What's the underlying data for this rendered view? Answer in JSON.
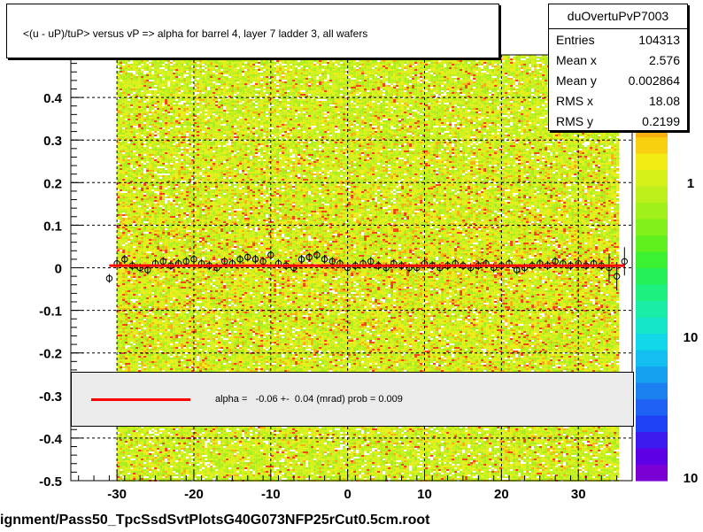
{
  "chart_data": {
    "type": "heatmap",
    "title": "<(u - uP)/tuP> versus   vP => alpha for barrel 4, layer 7 ladder 3, all wafers",
    "xlim": [
      -36,
      37
    ],
    "ylim": [
      -0.5,
      0.5
    ],
    "x_ticks": [
      -30,
      -20,
      -10,
      0,
      10,
      20,
      30
    ],
    "y_ticks": [
      -0.5,
      -0.4,
      -0.3,
      -0.2,
      -0.1,
      0,
      0.1,
      0.2,
      0.3,
      0.4
    ],
    "y_tick_labels": [
      "-0.5",
      "-0.4",
      "-0.3",
      "-0.2",
      "-0.1",
      "0",
      "0.1",
      "0.2",
      "0.3",
      "0.4"
    ],
    "grid": true,
    "populated_x_range": [
      -30,
      35
    ],
    "colorbar": {
      "scale": "log",
      "tick_labels": [
        "1",
        "10",
        "10"
      ],
      "colors": [
        "#7a00d6",
        "#5e00e6",
        "#3d1bf0",
        "#2040f5",
        "#1f60f5",
        "#1a80f0",
        "#17a0f0",
        "#13bff0",
        "#10d8e8",
        "#16e6c8",
        "#19eda6",
        "#1ef080",
        "#24f059",
        "#3cf032",
        "#60f01e",
        "#82f01a",
        "#a0f01a",
        "#bdf01a",
        "#d6f01a",
        "#f0ec14",
        "#f8d010",
        "#f8b010",
        "#f89010",
        "#f87010",
        "#f84010",
        "#f01010"
      ]
    },
    "profile": {
      "x": [
        -31,
        -30,
        -29,
        -28,
        -27,
        -26,
        -25,
        -24,
        -23,
        -22,
        -21,
        -20,
        -19,
        -18,
        -17,
        -16,
        -15,
        -14,
        -13,
        -12,
        -11,
        -10,
        -9,
        -8,
        -7,
        -6,
        -5,
        -4,
        -3,
        -2,
        -1,
        0,
        1,
        2,
        3,
        4,
        5,
        6,
        7,
        8,
        9,
        10,
        11,
        12,
        13,
        14,
        15,
        16,
        17,
        18,
        19,
        20,
        21,
        22,
        23,
        24,
        25,
        26,
        27,
        28,
        29,
        30,
        31,
        32,
        33,
        34,
        35,
        36
      ],
      "y": [
        -0.025,
        0.01,
        0.02,
        0.005,
        0.0,
        -0.005,
        0.01,
        0.015,
        0.005,
        0.01,
        0.015,
        0.02,
        0.01,
        0.005,
        0.0,
        0.015,
        0.01,
        0.02,
        0.025,
        0.02,
        0.015,
        0.03,
        0.01,
        0.005,
        0.0,
        0.02,
        0.025,
        0.03,
        0.02,
        0.015,
        0.01,
        0.0,
        0.005,
        0.01,
        0.015,
        0.005,
        0.0,
        0.01,
        0.005,
        0.0,
        0.0,
        0.01,
        0.005,
        0.0,
        0.005,
        0.01,
        0.005,
        0.0,
        0.005,
        0.01,
        0.0,
        0.005,
        0.01,
        -0.005,
        0.0,
        0.005,
        0.01,
        0.005,
        0.015,
        0.01,
        0.005,
        0.01,
        0.005,
        0.01,
        0.005,
        0.0,
        -0.02,
        0.015
      ]
    },
    "fit": {
      "type": "line",
      "y": 0.005
    }
  },
  "stats": {
    "name": "duOvertuPvP7003",
    "rows": [
      {
        "label": "Entries",
        "value": "104313"
      },
      {
        "label": "Mean x",
        "value": "2.576"
      },
      {
        "label": "Mean y",
        "value": "0.002864"
      },
      {
        "label": "RMS x",
        "value": "18.08"
      },
      {
        "label": "RMS y",
        "value": "0.2199"
      }
    ]
  },
  "legend": {
    "entry": "alpha =   -0.06 +-  0.04 (mrad) prob = 0.009"
  },
  "footer": "ignment/Pass50_TpcSsdSvtPlotsG40G073NFP25rCut0.5cm.root"
}
